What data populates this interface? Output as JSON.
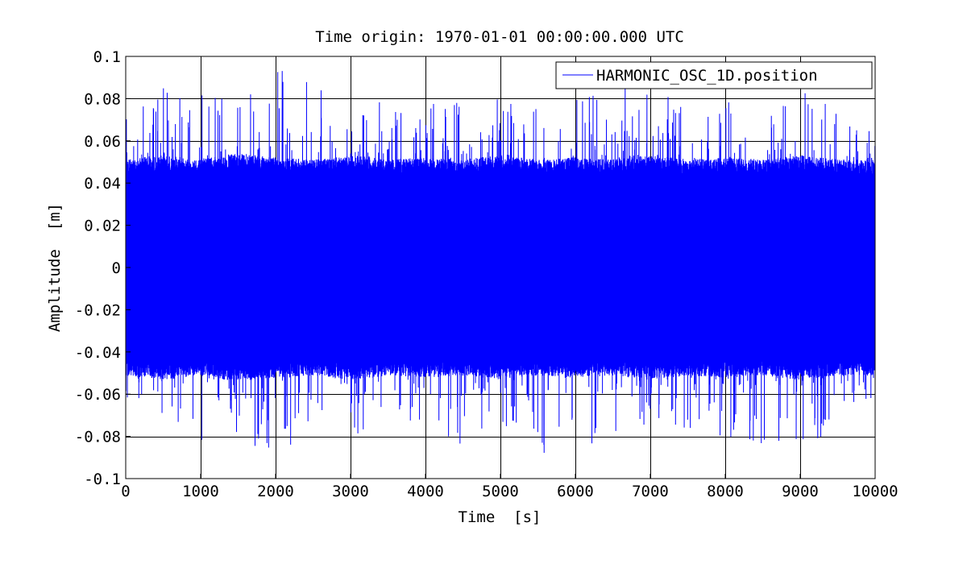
{
  "chart_data": {
    "type": "line",
    "title": "Time origin: 1970-01-01 00:00:00.000 UTC",
    "xlabel": "Time  [s]",
    "ylabel": "Amplitude  [m]",
    "xlim": [
      0,
      10000
    ],
    "ylim": [
      -0.1,
      0.1
    ],
    "xticks": [
      0,
      1000,
      2000,
      3000,
      4000,
      5000,
      6000,
      7000,
      8000,
      9000,
      10000
    ],
    "xtick_labels": [
      "0",
      "1000",
      "2000",
      "3000",
      "4000",
      "5000",
      "6000",
      "7000",
      "8000",
      "9000",
      "10000"
    ],
    "yticks": [
      0.1,
      0.08,
      0.06,
      0.04,
      0.02,
      0,
      -0.02,
      -0.04,
      -0.06,
      -0.08,
      -0.1
    ],
    "ytick_labels": [
      "0.1",
      "0.08",
      "0.06",
      "0.04",
      "0.02",
      "0",
      "-0.02",
      "-0.04",
      "-0.06",
      "-0.08",
      "-0.1"
    ],
    "grid": true,
    "legend_position": "top-right",
    "series": [
      {
        "name": "HARMONIC_OSC_1D.position",
        "color": "#0000ff",
        "envelope": {
          "x": [
            0,
            500,
            1000,
            1500,
            2000,
            2500,
            3000,
            3500,
            4000,
            4500,
            5000,
            5500,
            6000,
            6500,
            7000,
            7500,
            8000,
            8500,
            9000,
            9500,
            10000
          ],
          "typical_min": [
            -0.05,
            -0.052,
            -0.05,
            -0.053,
            -0.051,
            -0.05,
            -0.052,
            -0.05,
            -0.051,
            -0.05,
            -0.052,
            -0.05,
            -0.051,
            -0.05,
            -0.052,
            -0.05,
            -0.051,
            -0.05,
            -0.052,
            -0.05,
            -0.05
          ],
          "typical_max": [
            0.05,
            0.052,
            0.05,
            0.053,
            0.051,
            0.05,
            0.052,
            0.05,
            0.051,
            0.05,
            0.052,
            0.05,
            0.051,
            0.05,
            0.052,
            0.05,
            0.051,
            0.05,
            0.052,
            0.05,
            0.05
          ],
          "peak_min": [
            -0.066,
            -0.07,
            -0.086,
            -0.08,
            -0.09,
            -0.075,
            -0.08,
            -0.076,
            -0.082,
            -0.085,
            -0.076,
            -0.09,
            -0.088,
            -0.08,
            -0.075,
            -0.08,
            -0.08,
            -0.085,
            -0.084,
            -0.078,
            -0.066
          ],
          "peak_max": [
            0.07,
            0.085,
            0.084,
            0.08,
            0.095,
            0.087,
            0.08,
            0.085,
            0.077,
            0.08,
            0.08,
            0.075,
            0.08,
            0.088,
            0.084,
            0.082,
            0.08,
            0.078,
            0.083,
            0.08,
            0.062
          ]
        }
      }
    ]
  }
}
